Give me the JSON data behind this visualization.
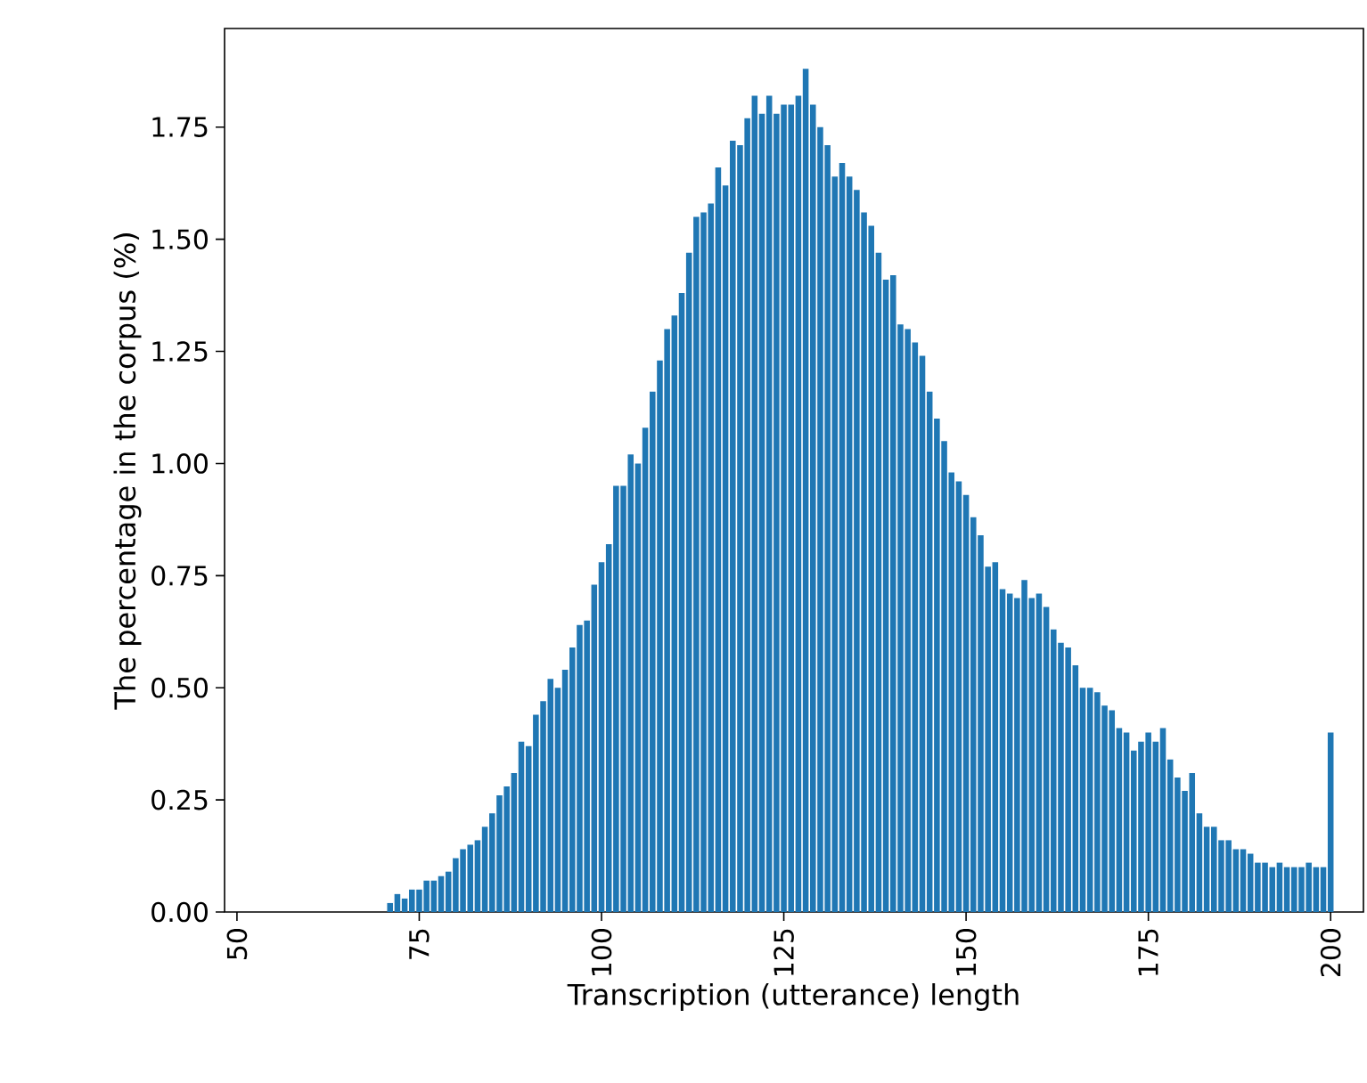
{
  "chart_data": {
    "type": "bar",
    "xlabel": "Transcription (utterance) length",
    "ylabel": "The percentage in the corpus (%)",
    "x": [
      71,
      72,
      73,
      74,
      75,
      76,
      77,
      78,
      79,
      80,
      81,
      82,
      83,
      84,
      85,
      86,
      87,
      88,
      89,
      90,
      91,
      92,
      93,
      94,
      95,
      96,
      97,
      98,
      99,
      100,
      101,
      102,
      103,
      104,
      105,
      106,
      107,
      108,
      109,
      110,
      111,
      112,
      113,
      114,
      115,
      116,
      117,
      118,
      119,
      120,
      121,
      122,
      123,
      124,
      125,
      126,
      127,
      128,
      129,
      130,
      131,
      132,
      133,
      134,
      135,
      136,
      137,
      138,
      139,
      140,
      141,
      142,
      143,
      144,
      145,
      146,
      147,
      148,
      149,
      150,
      151,
      152,
      153,
      154,
      155,
      156,
      157,
      158,
      159,
      160,
      161,
      162,
      163,
      164,
      165,
      166,
      167,
      168,
      169,
      170,
      171,
      172,
      173,
      174,
      175,
      176,
      177,
      178,
      179,
      180,
      181,
      182,
      183,
      184,
      185,
      186,
      187,
      188,
      189,
      190,
      191,
      192,
      193,
      194,
      195,
      196,
      197,
      198,
      199,
      200
    ],
    "values": [
      0.02,
      0.04,
      0.03,
      0.05,
      0.05,
      0.07,
      0.07,
      0.08,
      0.09,
      0.12,
      0.14,
      0.15,
      0.16,
      0.19,
      0.22,
      0.26,
      0.28,
      0.31,
      0.38,
      0.37,
      0.44,
      0.47,
      0.52,
      0.5,
      0.54,
      0.59,
      0.64,
      0.65,
      0.73,
      0.78,
      0.82,
      0.95,
      0.95,
      1.02,
      1.0,
      1.08,
      1.16,
      1.23,
      1.3,
      1.33,
      1.38,
      1.47,
      1.55,
      1.56,
      1.58,
      1.66,
      1.62,
      1.72,
      1.71,
      1.77,
      1.82,
      1.78,
      1.82,
      1.78,
      1.8,
      1.8,
      1.82,
      1.88,
      1.8,
      1.75,
      1.71,
      1.64,
      1.67,
      1.64,
      1.61,
      1.56,
      1.53,
      1.47,
      1.41,
      1.42,
      1.31,
      1.3,
      1.27,
      1.24,
      1.16,
      1.1,
      1.05,
      0.98,
      0.96,
      0.93,
      0.88,
      0.84,
      0.77,
      0.78,
      0.72,
      0.71,
      0.7,
      0.74,
      0.7,
      0.71,
      0.68,
      0.63,
      0.6,
      0.59,
      0.55,
      0.5,
      0.5,
      0.49,
      0.46,
      0.45,
      0.41,
      0.4,
      0.36,
      0.38,
      0.4,
      0.38,
      0.41,
      0.34,
      0.3,
      0.27,
      0.31,
      0.22,
      0.19,
      0.19,
      0.16,
      0.16,
      0.14,
      0.14,
      0.13,
      0.11,
      0.11,
      0.1,
      0.11,
      0.1,
      0.1,
      0.1,
      0.11,
      0.1,
      0.1,
      0.4
    ],
    "color": "#1f77b4",
    "xlim": [
      48.3,
      204.5
    ],
    "ylim": [
      0,
      1.97
    ],
    "xticks": [
      50,
      75,
      100,
      125,
      150,
      175,
      200
    ],
    "yticks": [
      {
        "value": 0,
        "label": "0.00"
      },
      {
        "value": 0.25,
        "label": "0.25"
      },
      {
        "value": 0.5,
        "label": "0.50"
      },
      {
        "value": 0.75,
        "label": "0.75"
      },
      {
        "value": 1.0,
        "label": "1.00"
      },
      {
        "value": 1.25,
        "label": "1.25"
      },
      {
        "value": 1.5,
        "label": "1.50"
      },
      {
        "value": 1.75,
        "label": "1.75"
      }
    ],
    "grid": false
  }
}
